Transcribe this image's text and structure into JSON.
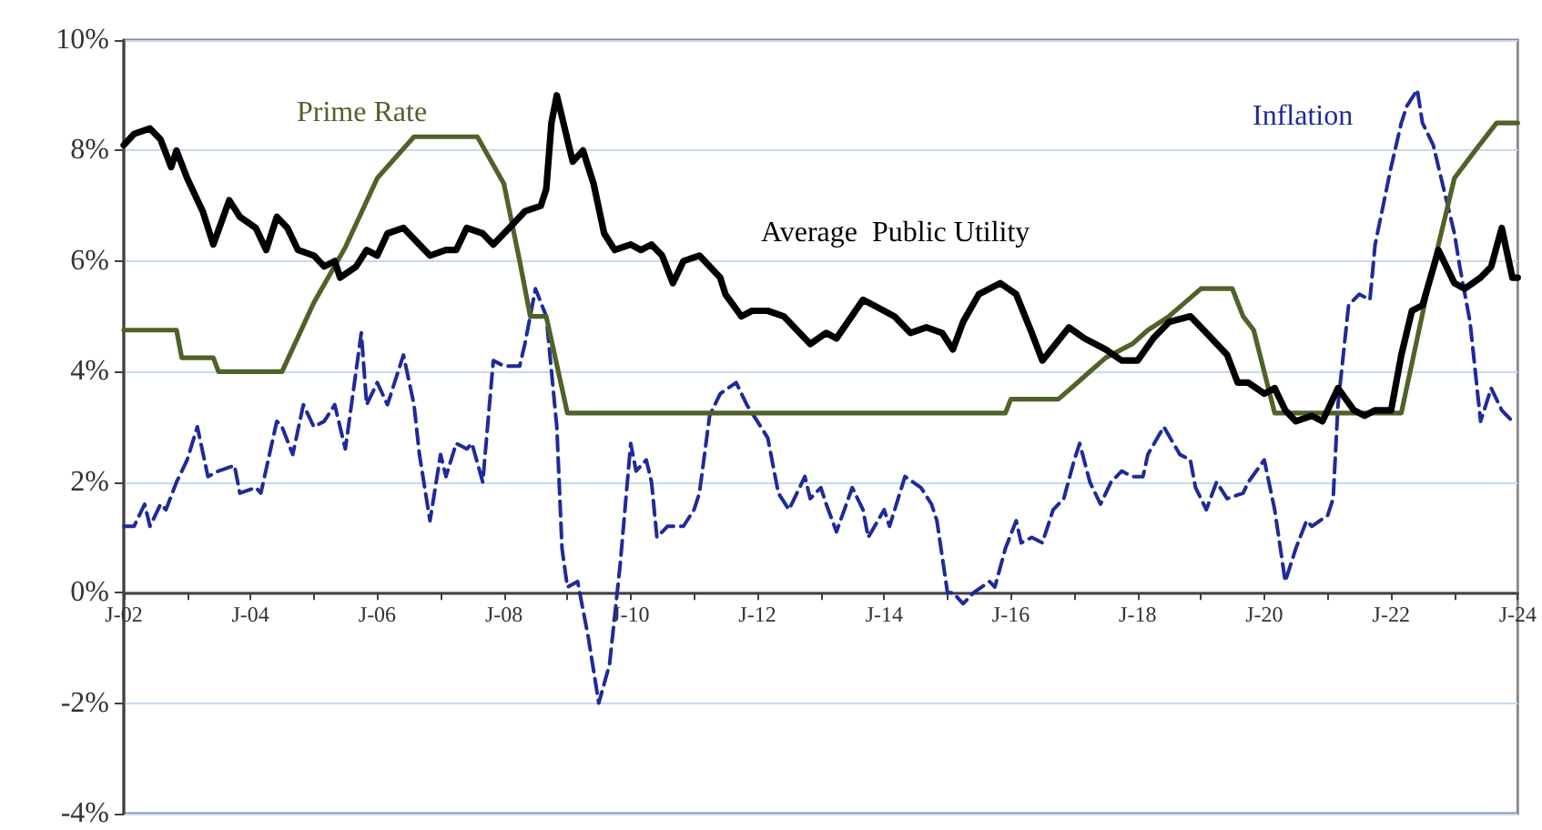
{
  "chart_data": {
    "type": "line",
    "xlim": [
      "2002-01",
      "2024-01"
    ],
    "ylim": [
      -4,
      10
    ],
    "xticks": [
      {
        "value": "2002-01",
        "label": "J-02"
      },
      {
        "value": "2003-01",
        "label": null
      },
      {
        "value": "2004-01",
        "label": "J-04"
      },
      {
        "value": "2005-01",
        "label": null
      },
      {
        "value": "2006-01",
        "label": "J-06"
      },
      {
        "value": "2007-01",
        "label": null
      },
      {
        "value": "2008-01",
        "label": "J-08"
      },
      {
        "value": "2009-01",
        "label": null
      },
      {
        "value": "2010-01",
        "label": "J-10"
      },
      {
        "value": "2011-01",
        "label": null
      },
      {
        "value": "2012-01",
        "label": "J-12"
      },
      {
        "value": "2013-01",
        "label": null
      },
      {
        "value": "2014-01",
        "label": "J-14"
      },
      {
        "value": "2015-01",
        "label": null
      },
      {
        "value": "2016-01",
        "label": "J-16"
      },
      {
        "value": "2017-01",
        "label": null
      },
      {
        "value": "2018-01",
        "label": "J-18"
      },
      {
        "value": "2019-01",
        "label": null
      },
      {
        "value": "2020-01",
        "label": "J-20"
      },
      {
        "value": "2021-01",
        "label": null
      },
      {
        "value": "2022-01",
        "label": "J-22"
      },
      {
        "value": "2023-01",
        "label": null
      },
      {
        "value": "2024-01",
        "label": "J-24"
      }
    ],
    "yticks": [
      {
        "value": -4,
        "label": "-4%"
      },
      {
        "value": -2,
        "label": "-2%"
      },
      {
        "value": 0,
        "label": "0%"
      },
      {
        "value": 2,
        "label": "2%"
      },
      {
        "value": 4,
        "label": "4%"
      },
      {
        "value": 6,
        "label": "6%"
      },
      {
        "value": 8,
        "label": "8%"
      },
      {
        "value": 10,
        "label": "10%"
      }
    ],
    "grid": "y",
    "marker": "none",
    "series": [
      {
        "name": "Average  Public Utility",
        "color": "#000000",
        "line_style": "solid",
        "x": [
          "2002-01",
          "2002-03",
          "2002-06",
          "2002-08",
          "2002-10",
          "2002-11",
          "2003-01",
          "2003-04",
          "2003-06",
          "2003-09",
          "2003-11",
          "2004-02",
          "2004-04",
          "2004-06",
          "2004-08",
          "2004-10",
          "2005-01",
          "2005-03",
          "2005-05",
          "2005-06",
          "2005-09",
          "2005-11",
          "2006-01",
          "2006-03",
          "2006-06",
          "2006-09",
          "2006-11",
          "2007-02",
          "2007-04",
          "2007-06",
          "2007-09",
          "2007-11",
          "2008-02",
          "2008-05",
          "2008-08",
          "2008-09",
          "2008-10",
          "2008-11",
          "2009-01",
          "2009-02",
          "2009-04",
          "2009-06",
          "2009-08",
          "2009-10",
          "2010-01",
          "2010-03",
          "2010-05",
          "2010-07",
          "2010-09",
          "2010-11",
          "2011-02",
          "2011-06",
          "2011-07",
          "2011-10",
          "2011-12",
          "2012-03",
          "2012-06",
          "2012-11",
          "2013-02",
          "2013-04",
          "2013-09",
          "2013-11",
          "2014-03",
          "2014-06",
          "2014-09",
          "2014-12",
          "2015-02",
          "2015-04",
          "2015-07",
          "2015-11",
          "2016-02",
          "2016-05",
          "2016-07",
          "2016-12",
          "2017-03",
          "2017-07",
          "2017-10",
          "2018-01",
          "2018-04",
          "2018-07",
          "2018-11",
          "2019-02",
          "2019-06",
          "2019-08",
          "2019-10",
          "2020-01",
          "2020-03",
          "2020-05",
          "2020-07",
          "2020-10",
          "2020-12",
          "2021-03",
          "2021-06",
          "2021-08",
          "2021-10",
          "2022-01",
          "2022-03",
          "2022-05",
          "2022-07",
          "2022-10",
          "2023-01",
          "2023-03",
          "2023-06",
          "2023-08",
          "2023-10",
          "2023-12",
          "2024-01"
        ],
        "values": [
          8.1,
          8.3,
          8.4,
          8.2,
          7.7,
          8.0,
          7.5,
          6.9,
          6.3,
          7.1,
          6.8,
          6.6,
          6.2,
          6.8,
          6.6,
          6.2,
          6.1,
          5.9,
          6.0,
          5.7,
          5.9,
          6.2,
          6.1,
          6.5,
          6.6,
          6.3,
          6.1,
          6.2,
          6.2,
          6.6,
          6.5,
          6.3,
          6.6,
          6.9,
          7.0,
          7.3,
          8.5,
          9.0,
          8.2,
          7.8,
          8.0,
          7.4,
          6.5,
          6.2,
          6.3,
          6.2,
          6.3,
          6.1,
          5.6,
          6.0,
          6.1,
          5.7,
          5.4,
          5.0,
          5.1,
          5.1,
          5.0,
          4.5,
          4.7,
          4.6,
          5.3,
          5.2,
          5.0,
          4.7,
          4.8,
          4.7,
          4.4,
          4.9,
          5.4,
          5.6,
          5.4,
          4.7,
          4.2,
          4.8,
          4.6,
          4.4,
          4.2,
          4.2,
          4.6,
          4.9,
          5.0,
          4.7,
          4.3,
          3.8,
          3.8,
          3.6,
          3.7,
          3.3,
          3.1,
          3.2,
          3.1,
          3.7,
          3.3,
          3.2,
          3.3,
          3.3,
          4.3,
          5.1,
          5.2,
          6.2,
          5.6,
          5.5,
          5.7,
          5.9,
          6.6,
          5.7,
          5.7
        ]
      },
      {
        "name": "Prime Rate",
        "color": "#4f6228",
        "line_style": "solid",
        "x": [
          "2002-01",
          "2002-11",
          "2002-12",
          "2003-06",
          "2003-07",
          "2004-07",
          "2005-01",
          "2005-07",
          "2006-01",
          "2006-08",
          "2007-08",
          "2008-01",
          "2008-04",
          "2008-06",
          "2008-09",
          "2009-01",
          "2015-12",
          "2016-01",
          "2016-10",
          "2017-01",
          "2017-04",
          "2017-07",
          "2017-12",
          "2018-03",
          "2018-07",
          "2018-10",
          "2019-01",
          "2019-07",
          "2019-09",
          "2019-11",
          "2020-03",
          "2022-03",
          "2022-08",
          "2023-01",
          "2023-05",
          "2023-09",
          "2024-01"
        ],
        "values": [
          4.75,
          4.75,
          4.25,
          4.25,
          4.0,
          4.0,
          5.25,
          6.25,
          7.5,
          8.25,
          8.25,
          7.4,
          6.0,
          5.0,
          5.0,
          3.25,
          3.25,
          3.5,
          3.5,
          3.75,
          4.0,
          4.25,
          4.5,
          4.75,
          5.0,
          5.25,
          5.5,
          5.5,
          5.0,
          4.75,
          3.25,
          3.25,
          5.5,
          7.5,
          8.0,
          8.5,
          8.5
        ]
      },
      {
        "name": "Inflation",
        "color": "#1f2a9a",
        "line_style": "dashed",
        "x": [
          "2002-01",
          "2002-03",
          "2002-05",
          "2002-06",
          "2002-08",
          "2002-09",
          "2002-11",
          "2003-01",
          "2003-03",
          "2003-05",
          "2003-07",
          "2003-10",
          "2003-11",
          "2004-02",
          "2004-03",
          "2004-06",
          "2004-07",
          "2004-09",
          "2004-11",
          "2005-01",
          "2005-03",
          "2005-05",
          "2005-07",
          "2005-08",
          "2005-10",
          "2005-11",
          "2006-01",
          "2006-03",
          "2006-06",
          "2006-08",
          "2006-09",
          "2006-11",
          "2007-01",
          "2007-02",
          "2007-04",
          "2007-06",
          "2007-07",
          "2007-09",
          "2007-11",
          "2008-01",
          "2008-04",
          "2008-05",
          "2008-07",
          "2008-09",
          "2008-11",
          "2008-12",
          "2009-01",
          "2009-03",
          "2009-05",
          "2009-07",
          "2009-09",
          "2009-11",
          "2010-01",
          "2010-02",
          "2010-04",
          "2010-05",
          "2010-06",
          "2010-08",
          "2010-10",
          "2010-11",
          "2011-01",
          "2011-02",
          "2011-04",
          "2011-06",
          "2011-09",
          "2011-11",
          "2012-01",
          "2012-03",
          "2012-05",
          "2012-07",
          "2012-10",
          "2012-11",
          "2013-01",
          "2013-02",
          "2013-04",
          "2013-07",
          "2013-09",
          "2013-10",
          "2014-01",
          "2014-02",
          "2014-05",
          "2014-08",
          "2014-10",
          "2014-11",
          "2015-01",
          "2015-02",
          "2015-04",
          "2015-06",
          "2015-09",
          "2015-10",
          "2015-12",
          "2016-02",
          "2016-03",
          "2016-05",
          "2016-07",
          "2016-09",
          "2016-11",
          "2017-01",
          "2017-02",
          "2017-04",
          "2017-06",
          "2017-08",
          "2017-10",
          "2017-12",
          "2018-02",
          "2018-03",
          "2018-06",
          "2018-09",
          "2018-11",
          "2018-12",
          "2019-02",
          "2019-04",
          "2019-06",
          "2019-09",
          "2019-10",
          "2020-01",
          "2020-03",
          "2020-05",
          "2020-07",
          "2020-09",
          "2020-10",
          "2021-01",
          "2021-02",
          "2021-03",
          "2021-05",
          "2021-07",
          "2021-09",
          "2021-10",
          "2022-01",
          "2022-03",
          "2022-04",
          "2022-06",
          "2022-07",
          "2022-09",
          "2022-11",
          "2023-01",
          "2023-02",
          "2023-04",
          "2023-06",
          "2023-08",
          "2023-10",
          "2023-12"
        ],
        "values": [
          1.2,
          1.2,
          1.6,
          1.2,
          1.6,
          1.5,
          2.0,
          2.4,
          3.0,
          2.1,
          2.2,
          2.3,
          1.8,
          1.9,
          1.8,
          3.1,
          3.0,
          2.5,
          3.4,
          3.0,
          3.1,
          3.4,
          2.6,
          3.3,
          4.7,
          3.4,
          3.8,
          3.4,
          4.3,
          3.4,
          2.5,
          1.3,
          2.5,
          2.1,
          2.7,
          2.6,
          2.7,
          2.0,
          4.2,
          4.1,
          4.1,
          4.5,
          5.5,
          5.0,
          3.0,
          0.8,
          0.1,
          0.2,
          -0.8,
          -2.0,
          -1.3,
          0.5,
          2.7,
          2.2,
          2.4,
          2.0,
          1.0,
          1.2,
          1.2,
          1.2,
          1.5,
          1.8,
          3.2,
          3.6,
          3.8,
          3.4,
          3.1,
          2.8,
          1.8,
          1.5,
          2.1,
          1.7,
          1.9,
          1.6,
          1.1,
          1.9,
          1.5,
          1.0,
          1.5,
          1.2,
          2.1,
          1.9,
          1.6,
          1.3,
          0.0,
          0.0,
          -0.2,
          0.0,
          0.2,
          0.1,
          0.8,
          1.3,
          0.9,
          1.0,
          0.9,
          1.5,
          1.7,
          2.4,
          2.7,
          2.0,
          1.6,
          2.0,
          2.2,
          2.1,
          2.1,
          2.5,
          3.0,
          2.5,
          2.4,
          1.9,
          1.5,
          2.0,
          1.7,
          1.8,
          2.0,
          2.4,
          1.5,
          0.2,
          0.8,
          1.3,
          1.2,
          1.4,
          1.7,
          3.4,
          5.2,
          5.4,
          5.3,
          6.3,
          7.7,
          8.5,
          8.8,
          9.1,
          8.5,
          8.1,
          7.3,
          6.5,
          5.9,
          4.9,
          3.1,
          3.7,
          3.3,
          3.1
        ]
      }
    ]
  }
}
